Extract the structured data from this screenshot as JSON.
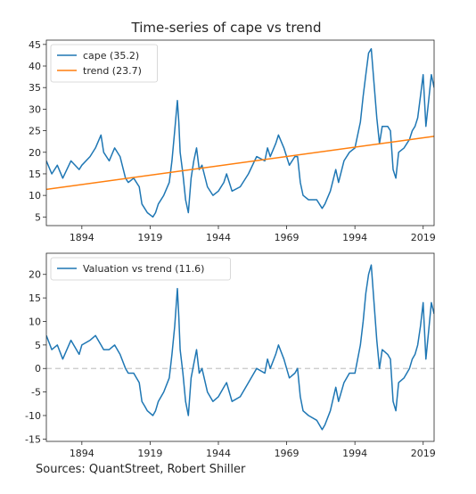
{
  "chart_data": [
    {
      "type": "line",
      "title": "Time-series of cape vs trend",
      "xlim": [
        1881,
        2023
      ],
      "ylim": [
        3,
        46
      ],
      "x_ticks": [
        1894,
        1919,
        1944,
        1969,
        1994,
        2019
      ],
      "y_ticks": [
        5,
        10,
        15,
        20,
        25,
        30,
        35,
        40,
        45
      ],
      "legend_position": "top-left",
      "grid": false,
      "series": [
        {
          "name": "cape (35.2)",
          "color": "#1f77b4",
          "x": [
            1881,
            1883,
            1885,
            1887,
            1890,
            1893,
            1894,
            1897,
            1899,
            1901,
            1902,
            1904,
            1906,
            1908,
            1910,
            1911,
            1913,
            1915,
            1916,
            1917,
            1918,
            1920,
            1921,
            1922,
            1924,
            1926,
            1927,
            1928,
            1929,
            1929.5,
            1930,
            1931,
            1932,
            1933,
            1934,
            1935,
            1936,
            1937,
            1938,
            1940,
            1942,
            1944,
            1946,
            1947,
            1949,
            1952,
            1955,
            1958,
            1961,
            1962,
            1963,
            1965,
            1966,
            1968,
            1970,
            1972,
            1973,
            1974,
            1975,
            1977,
            1980,
            1982,
            1983,
            1985,
            1987,
            1988,
            1990,
            1992,
            1994,
            1996,
            1997,
            1998,
            1999,
            2000,
            2001,
            2002,
            2003,
            2004,
            2006,
            2007,
            2008,
            2009,
            2010,
            2012,
            2014,
            2015,
            2016,
            2017,
            2018,
            2019,
            2020,
            2021,
            2022,
            2023
          ],
          "values": [
            18,
            15,
            17,
            14,
            18,
            16,
            17,
            19,
            21,
            24,
            20,
            18,
            21,
            19,
            14,
            13,
            14,
            12,
            8,
            7,
            6,
            5,
            6,
            8,
            10,
            13,
            18,
            25,
            32,
            27,
            20,
            15,
            9,
            6,
            14,
            18,
            21,
            16,
            17,
            12,
            10,
            11,
            13,
            15,
            11,
            12,
            15,
            19,
            18,
            21,
            19,
            22,
            24,
            21,
            17,
            19,
            19,
            13,
            10,
            9,
            9,
            7,
            8,
            11,
            16,
            13,
            18,
            20,
            21,
            27,
            33,
            38,
            43,
            44,
            36,
            28,
            22,
            26,
            26,
            25,
            16,
            14,
            20,
            21,
            23,
            25,
            26,
            28,
            33,
            38,
            26,
            32,
            38,
            35
          ]
        },
        {
          "name": "trend (23.7)",
          "color": "#ff7f0e",
          "x": [
            1881,
            2023
          ],
          "values": [
            11.4,
            23.7
          ]
        }
      ]
    },
    {
      "type": "line",
      "xlim": [
        1881,
        2023
      ],
      "ylim": [
        -15.5,
        24.5
      ],
      "x_ticks": [
        1894,
        1919,
        1944,
        1969,
        1994,
        2019
      ],
      "y_ticks": [
        -15,
        -10,
        -5,
        0,
        5,
        10,
        15,
        20
      ],
      "legend_position": "top-left",
      "grid": false,
      "reference_line": 0,
      "series": [
        {
          "name": "Valuation vs trend (11.6)",
          "color": "#1f77b4",
          "x": [
            1881,
            1883,
            1885,
            1887,
            1890,
            1893,
            1894,
            1897,
            1899,
            1901,
            1902,
            1904,
            1906,
            1908,
            1910,
            1911,
            1913,
            1915,
            1916,
            1917,
            1918,
            1920,
            1921,
            1922,
            1924,
            1926,
            1927,
            1928,
            1929,
            1929.5,
            1930,
            1931,
            1932,
            1933,
            1934,
            1935,
            1936,
            1937,
            1938,
            1940,
            1942,
            1944,
            1946,
            1947,
            1949,
            1952,
            1955,
            1958,
            1961,
            1962,
            1963,
            1965,
            1966,
            1968,
            1970,
            1972,
            1973,
            1974,
            1975,
            1977,
            1980,
            1982,
            1983,
            1985,
            1987,
            1988,
            1990,
            1992,
            1994,
            1996,
            1997,
            1998,
            1999,
            2000,
            2001,
            2002,
            2003,
            2004,
            2006,
            2007,
            2008,
            2009,
            2010,
            2012,
            2014,
            2015,
            2016,
            2017,
            2018,
            2019,
            2020,
            2021,
            2022,
            2023
          ],
          "values": [
            7,
            4,
            5,
            2,
            6,
            3,
            5,
            6,
            7,
            5,
            4,
            4,
            5,
            3,
            0,
            -1,
            -1,
            -3,
            -7,
            -8,
            -9,
            -10,
            -9,
            -7,
            -5,
            -2,
            3,
            9,
            17,
            11,
            4,
            -1,
            -7,
            -10,
            -2,
            1,
            4,
            -1,
            0,
            -5,
            -7,
            -6,
            -4,
            -3,
            -7,
            -6,
            -3,
            0,
            -1,
            2,
            0,
            3,
            5,
            2,
            -2,
            -1,
            0,
            -6,
            -9,
            -10,
            -11,
            -13,
            -12,
            -9,
            -4,
            -7,
            -3,
            -1,
            -1,
            5,
            10,
            16,
            20,
            22,
            14,
            6,
            0,
            4,
            3,
            2,
            -7,
            -9,
            -3,
            -2,
            0,
            2,
            3,
            5,
            9,
            14,
            2,
            8,
            14,
            11.6
          ]
        }
      ]
    }
  ],
  "footer": {
    "sources": "Sources: QuantStreet, Robert Shiller"
  }
}
